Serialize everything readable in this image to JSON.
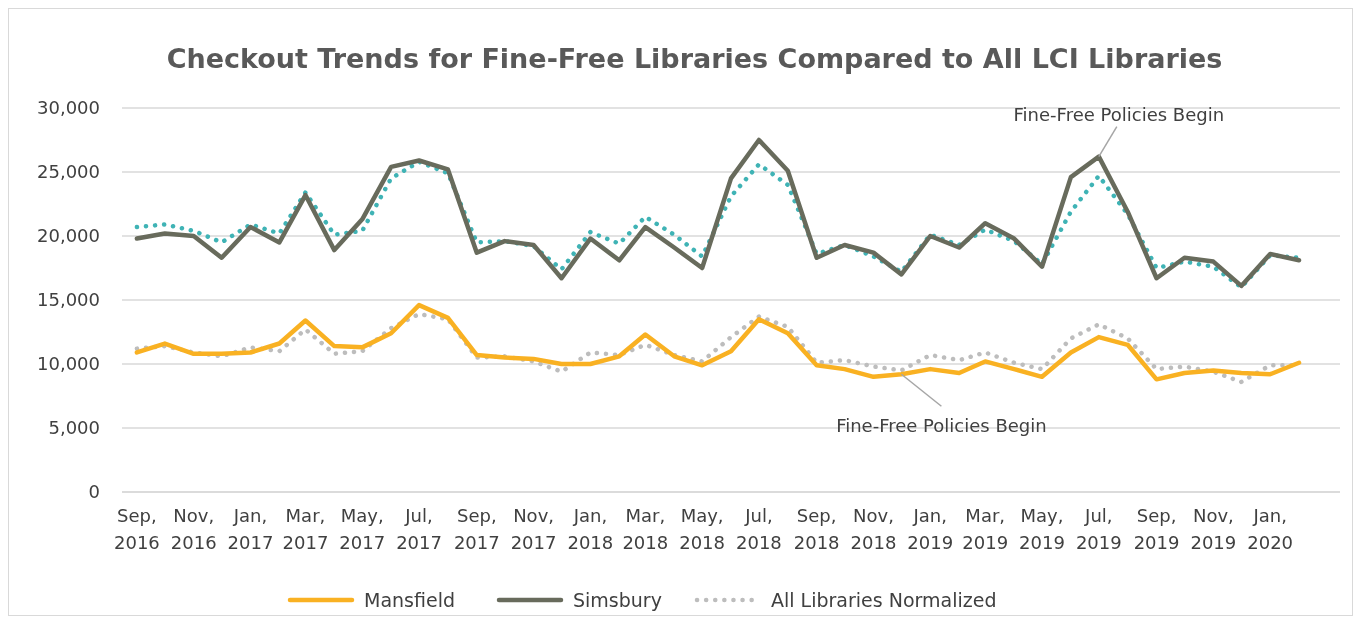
{
  "chart_data": {
    "type": "line",
    "title": "Checkout Trends for Fine-Free Libraries Compared to All LCI Libraries",
    "x": [
      "2016-09",
      "2016-10",
      "2016-11",
      "2016-12",
      "2017-01",
      "2017-02",
      "2017-03",
      "2017-04",
      "2017-05",
      "2017-06",
      "2017-07",
      "2017-08",
      "2017-09",
      "2017-10",
      "2017-11",
      "2017-12",
      "2018-01",
      "2018-02",
      "2018-03",
      "2018-04",
      "2018-05",
      "2018-06",
      "2018-07",
      "2018-08",
      "2018-09",
      "2018-10",
      "2018-11",
      "2018-12",
      "2019-01",
      "2019-02",
      "2019-03",
      "2019-04",
      "2019-05",
      "2019-06",
      "2019-07",
      "2019-08",
      "2019-09",
      "2019-10",
      "2019-11",
      "2019-12",
      "2020-01",
      "2020-02"
    ],
    "xlim": [
      "2016-08-16",
      "2020-03-16"
    ],
    "xticks": [
      {
        "value": "2016-09",
        "label": "Sep, 2016"
      },
      {
        "value": "2016-11",
        "label": "Nov, 2016"
      },
      {
        "value": "2017-01",
        "label": "Jan, 2017"
      },
      {
        "value": "2017-03",
        "label": "Mar, 2017"
      },
      {
        "value": "2017-05",
        "label": "May, 2017"
      },
      {
        "value": "2017-07",
        "label": "Jul, 2017"
      },
      {
        "value": "2017-09",
        "label": "Sep, 2017"
      },
      {
        "value": "2017-11",
        "label": "Nov, 2017"
      },
      {
        "value": "2018-01",
        "label": "Jan, 2018"
      },
      {
        "value": "2018-03",
        "label": "Mar, 2018"
      },
      {
        "value": "2018-05",
        "label": "May, 2018"
      },
      {
        "value": "2018-07",
        "label": "Jul, 2018"
      },
      {
        "value": "2018-09",
        "label": "Sep, 2018"
      },
      {
        "value": "2018-11",
        "label": "Nov, 2018"
      },
      {
        "value": "2019-01",
        "label": "Jan, 2019"
      },
      {
        "value": "2019-03",
        "label": "Mar, 2019"
      },
      {
        "value": "2019-05",
        "label": "May, 2019"
      },
      {
        "value": "2019-07",
        "label": "Jul, 2019"
      },
      {
        "value": "2019-09",
        "label": "Sep, 2019"
      },
      {
        "value": "2019-11",
        "label": "Nov, 2019"
      },
      {
        "value": "2020-01",
        "label": "Jan, 2020"
      }
    ],
    "ylim": [
      0,
      30000
    ],
    "yticks": [
      {
        "value": 0,
        "label": "0"
      },
      {
        "value": 5000,
        "label": "5,000"
      },
      {
        "value": 10000,
        "label": "10,000"
      },
      {
        "value": 15000,
        "label": "15,000"
      },
      {
        "value": 20000,
        "label": "20,000"
      },
      {
        "value": 25000,
        "label": "25,000"
      },
      {
        "value": 30000,
        "label": "30,000"
      }
    ],
    "grid": "y",
    "legend": "bottom",
    "series": [
      {
        "color": "#3fb3b5",
        "line_style": "dotted",
        "values": [
          20700,
          20900,
          20400,
          19500,
          20900,
          20200,
          23400,
          20100,
          20400,
          24500,
          25800,
          24900,
          19500,
          19600,
          19200,
          17400,
          20300,
          19400,
          21500,
          20100,
          18400,
          23100,
          25600,
          24000,
          18600,
          19300,
          18400,
          17200,
          20100,
          19300,
          20500,
          19600,
          17800,
          21900,
          24700,
          21700,
          17500,
          18000,
          17600,
          16000,
          18500,
          18300
        ]
      },
      {
        "name": "All Libraries Normalized",
        "color": "#bdbdbd",
        "line_style": "dotted",
        "values": [
          11200,
          11400,
          10900,
          10600,
          11300,
          11000,
          12700,
          10800,
          11000,
          12800,
          13900,
          13500,
          10500,
          10600,
          10200,
          9400,
          10900,
          10700,
          11500,
          10700,
          10200,
          12100,
          13700,
          12900,
          10100,
          10300,
          9800,
          9500,
          10700,
          10300,
          10900,
          10100,
          9600,
          12000,
          13100,
          12000,
          9600,
          9800,
          9400,
          8600,
          9900,
          9900
        ]
      },
      {
        "name": "Mansfield",
        "color": "#f9b122",
        "line_style": "solid",
        "values": [
          10900,
          11600,
          10800,
          10800,
          10900,
          11600,
          13400,
          11400,
          11300,
          12400,
          14600,
          13600,
          10700,
          10500,
          10400,
          10000,
          10000,
          10600,
          12300,
          10600,
          9900,
          11000,
          13500,
          12400,
          9900,
          9600,
          9000,
          9200,
          9600,
          9300,
          10200,
          9600,
          9000,
          10900,
          12100,
          11500,
          8800,
          9300,
          9500,
          9300,
          9200,
          10100
        ]
      },
      {
        "name": "Simsbury",
        "color": "#686b5c",
        "line_style": "solid",
        "values": [
          19800,
          20200,
          20000,
          18300,
          20700,
          19500,
          23200,
          18900,
          21300,
          25400,
          25900,
          25200,
          18700,
          19600,
          19300,
          16700,
          19800,
          18100,
          20700,
          19100,
          17500,
          24500,
          27500,
          25100,
          18300,
          19300,
          18700,
          17000,
          20000,
          19100,
          21000,
          19800,
          17600,
          24600,
          26200,
          21900,
          16700,
          18300,
          18000,
          16100,
          18600,
          18100
        ]
      }
    ],
    "annotations": [
      {
        "text": "Fine-Free Policies Begin",
        "x": "2019-07",
        "y": 26200
      },
      {
        "text": "Fine-Free Policies Begin",
        "x": "2018-12",
        "y": 9200
      }
    ]
  }
}
